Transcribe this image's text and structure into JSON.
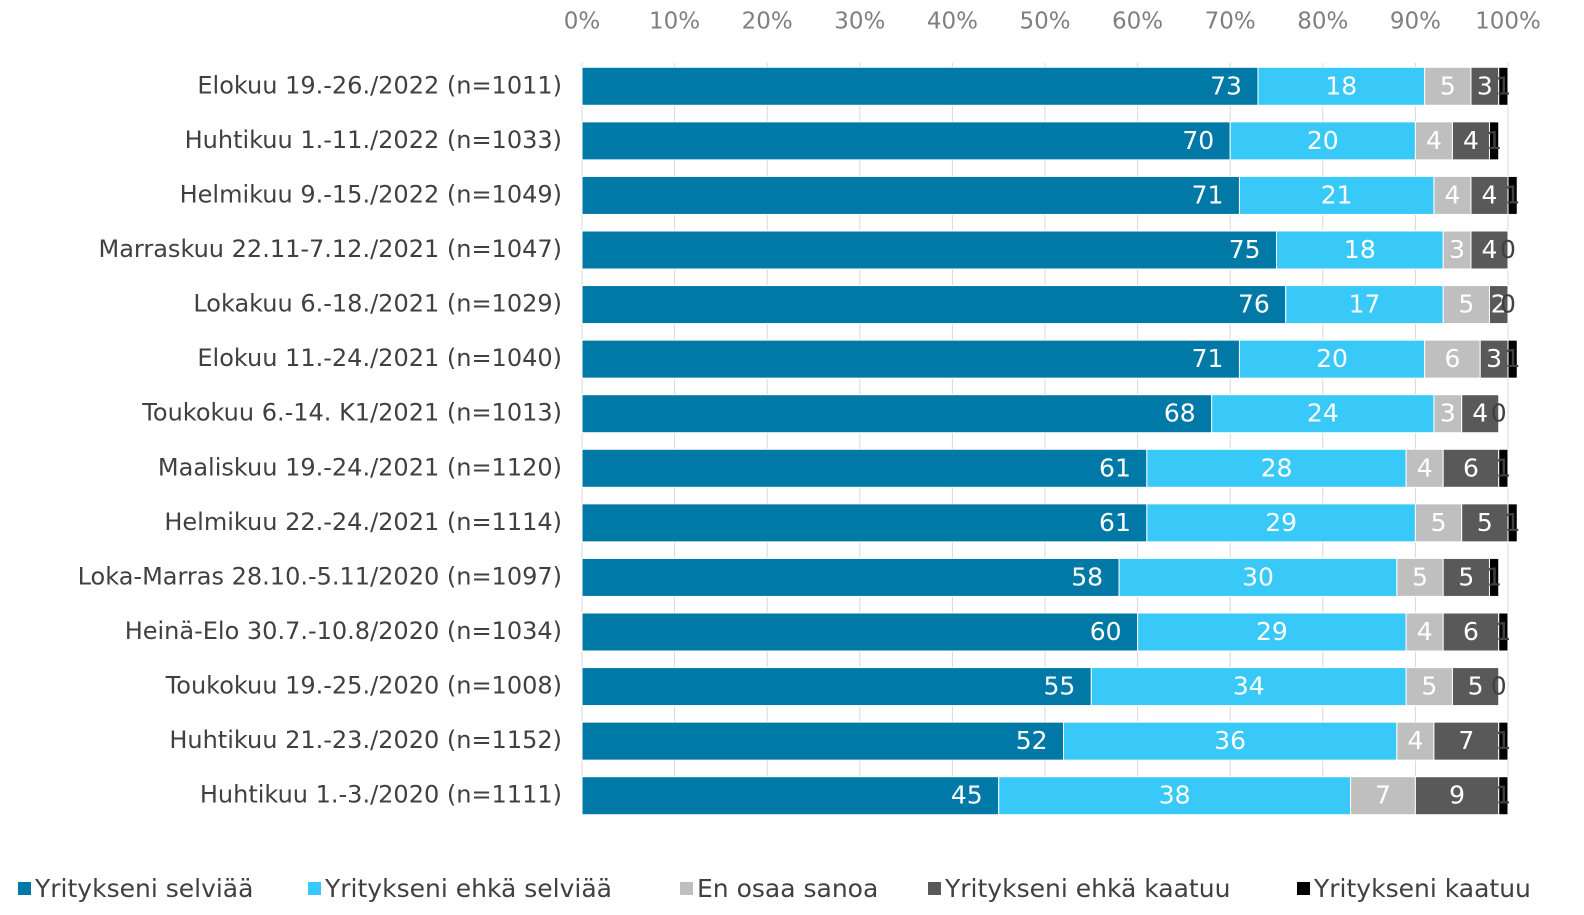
{
  "chart_data": {
    "type": "stacked-barh",
    "categories": [
      "Elokuu 19.-26./2022 (n=1011)",
      "Huhtikuu 1.-11./2022 (n=1033)",
      "Helmikuu 9.-15./2022 (n=1049)",
      "Marraskuu 22.11-7.12./2021 (n=1047)",
      "Lokakuu 6.-18./2021 (n=1029)",
      "Elokuu 11.-24./2021 (n=1040)",
      "Toukokuu 6.-14. K1/2021 (n=1013)",
      "Maaliskuu 19.-24./2021 (n=1120)",
      "Helmikuu 22.-24./2021 (n=1114)",
      "Loka-Marras 28.10.-5.11/2020 (n=1097)",
      "Heinä-Elo 30.7.-10.8/2020 (n=1034)",
      "Toukokuu 19.-25./2020 (n=1008)",
      "Huhtikuu 21.-23./2020 (n=1152)",
      "Huhtikuu 1.-3./2020 (n=1111)"
    ],
    "series": [
      {
        "name": "Yritykseni selviää",
        "color": "#0079a6",
        "values": [
          73,
          70,
          71,
          75,
          76,
          71,
          68,
          61,
          61,
          58,
          60,
          55,
          52,
          45
        ]
      },
      {
        "name": "Yritykseni ehkä selviää",
        "color": "#38c9f8",
        "values": [
          18,
          20,
          21,
          18,
          17,
          20,
          24,
          28,
          29,
          30,
          29,
          34,
          36,
          38
        ]
      },
      {
        "name": "En osaa sanoa",
        "color": "#bfbfbf",
        "values": [
          5,
          4,
          4,
          3,
          5,
          6,
          3,
          4,
          5,
          5,
          4,
          5,
          4,
          7
        ]
      },
      {
        "name": "Yritykseni ehkä kaatuu",
        "color": "#595959",
        "values": [
          3,
          4,
          4,
          4,
          2,
          3,
          4,
          6,
          5,
          5,
          6,
          5,
          7,
          9
        ]
      },
      {
        "name": "Yritykseni kaatuu",
        "color": "#000000",
        "values": [
          1,
          1,
          1,
          0,
          0,
          1,
          0,
          1,
          1,
          1,
          1,
          0,
          1,
          1
        ]
      }
    ],
    "xlim": [
      0,
      100
    ],
    "xticks": [
      {
        "value": 0,
        "label": "0%"
      },
      {
        "value": 10,
        "label": "10%"
      },
      {
        "value": 20,
        "label": "20%"
      },
      {
        "value": 30,
        "label": "30%"
      },
      {
        "value": 40,
        "label": "40%"
      },
      {
        "value": 50,
        "label": "50%"
      },
      {
        "value": 60,
        "label": "60%"
      },
      {
        "value": 70,
        "label": "70%"
      },
      {
        "value": 80,
        "label": "80%"
      },
      {
        "value": 90,
        "label": "90%"
      },
      {
        "value": 100,
        "label": "100%"
      }
    ],
    "grid": true,
    "legend": "bottom"
  }
}
